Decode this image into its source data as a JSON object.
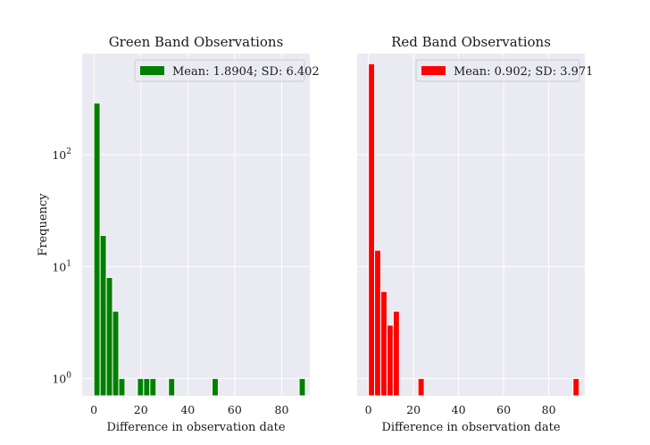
{
  "chart_data": [
    {
      "type": "bar",
      "title": "Green Band Observations",
      "xlabel": "Difference in observation date",
      "ylabel": "Frequency",
      "yscale": "log",
      "xlim": [
        -5,
        92
      ],
      "ylim": [
        0.7,
        800
      ],
      "xticks": [
        0,
        20,
        40,
        60,
        80
      ],
      "yticks": [
        {
          "value": 1,
          "base": "10",
          "exp": "0"
        },
        {
          "value": 10,
          "base": "10",
          "exp": "1"
        },
        {
          "value": 100,
          "base": "10",
          "exp": "2"
        }
      ],
      "grid": true,
      "legend_placement": "top-right",
      "color": "#008000",
      "series": [
        {
          "name": "Mean: 1.8904; SD: 6.402"
        }
      ],
      "bin_width": 2.65,
      "bins": [
        {
          "x": 0.0,
          "count": 290
        },
        {
          "x": 2.65,
          "count": 19
        },
        {
          "x": 5.3,
          "count": 8
        },
        {
          "x": 7.95,
          "count": 4
        },
        {
          "x": 10.6,
          "count": 1
        },
        {
          "x": 18.55,
          "count": 1
        },
        {
          "x": 21.2,
          "count": 1
        },
        {
          "x": 23.85,
          "count": 1
        },
        {
          "x": 31.8,
          "count": 1
        },
        {
          "x": 50.35,
          "count": 1
        },
        {
          "x": 87.45,
          "count": 1
        }
      ]
    },
    {
      "type": "bar",
      "title": "Red Band Observations",
      "xlabel": "Difference in observation date",
      "ylabel": "",
      "yscale": "log",
      "xlim": [
        -5,
        96
      ],
      "ylim": [
        0.7,
        800
      ],
      "xticks": [
        0,
        20,
        40,
        60,
        80
      ],
      "yticks": [],
      "grid": true,
      "legend_placement": "top-right",
      "color": "#ff0000",
      "series": [
        {
          "name": "Mean: 0.902; SD: 3.971"
        }
      ],
      "bin_width": 2.75,
      "bins": [
        {
          "x": 0.0,
          "count": 650
        },
        {
          "x": 2.75,
          "count": 14
        },
        {
          "x": 5.5,
          "count": 6
        },
        {
          "x": 8.25,
          "count": 3
        },
        {
          "x": 11.0,
          "count": 4
        },
        {
          "x": 22.0,
          "count": 1
        },
        {
          "x": 90.75,
          "count": 1
        }
      ]
    }
  ]
}
